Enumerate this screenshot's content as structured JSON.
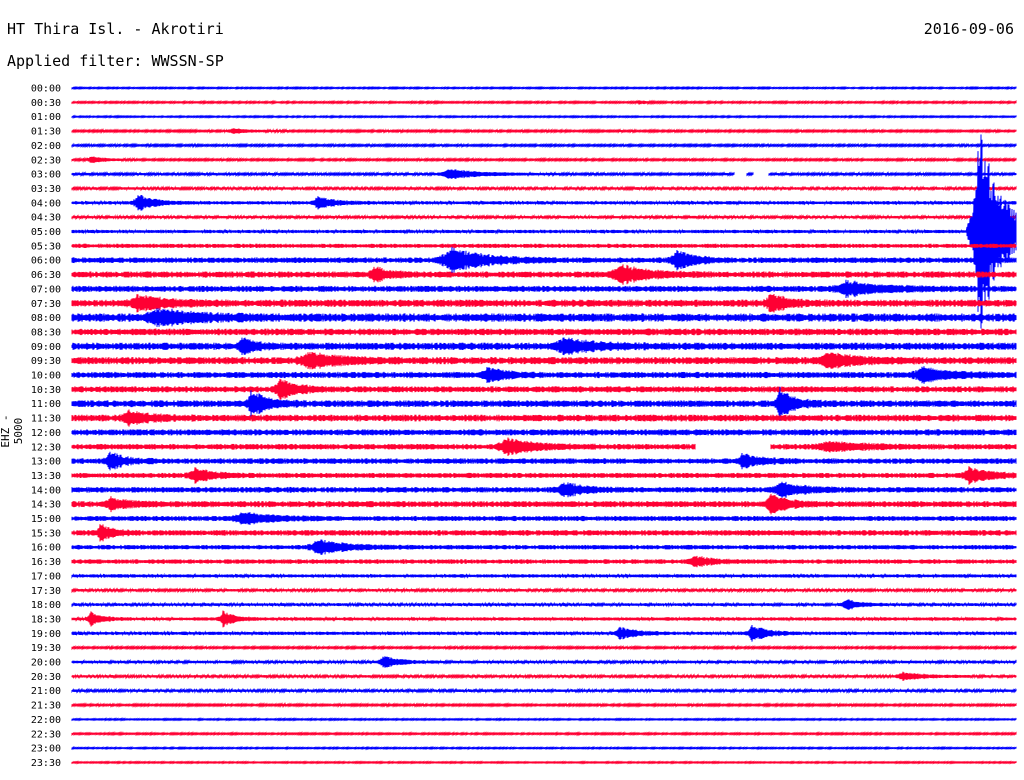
{
  "header": {
    "station": "HT Thira Isl. - Akrotiri",
    "date": "2016-09-06",
    "filter": "Applied filter: WWSSN-SP"
  },
  "axis": {
    "ylabel": "EHZ - 5000"
  },
  "colors": {
    "blue": "#0000ff",
    "red": "#ff0033"
  },
  "chart_data": {
    "type": "line",
    "title": "HT Thira Isl. - Akrotiri",
    "ylabel": "EHZ - 5000",
    "row_labels": [
      "00:00",
      "00:30",
      "01:00",
      "01:30",
      "02:00",
      "02:30",
      "03:00",
      "03:30",
      "04:00",
      "04:30",
      "05:00",
      "05:30",
      "06:00",
      "06:30",
      "07:00",
      "07:30",
      "08:00",
      "08:30",
      "09:00",
      "09:30",
      "10:00",
      "10:30",
      "11:00",
      "11:30",
      "12:00",
      "12:30",
      "13:00",
      "13:30",
      "14:00",
      "14:30",
      "15:00",
      "15:30",
      "16:00",
      "16:30",
      "17:00",
      "17:30",
      "18:00",
      "18:30",
      "19:00",
      "19:30",
      "20:00",
      "20:30",
      "21:00",
      "21:30",
      "22:00",
      "22:30",
      "23:00",
      "23:30"
    ],
    "noise": [
      0.5,
      0.6,
      0.5,
      0.7,
      0.7,
      0.7,
      0.8,
      0.9,
      1.2,
      0.9,
      1.2,
      1.5,
      2.0,
      2.2,
      2.2,
      2.6,
      3.0,
      2.4,
      2.6,
      2.6,
      2.2,
      2.2,
      2.4,
      2.4,
      2.2,
      2.0,
      2.0,
      1.8,
      2.0,
      2.2,
      1.8,
      2.0,
      1.6,
      1.6,
      1.2,
      0.9,
      1.0,
      1.2,
      1.2,
      0.7,
      1.0,
      0.9,
      0.9,
      0.7,
      0.5,
      0.6,
      0.5,
      0.5
    ],
    "events": [
      {
        "row": 1,
        "x": 0.6,
        "amp": 2,
        "width": 0.03
      },
      {
        "row": 3,
        "x": 0.17,
        "amp": 3,
        "width": 0.06
      },
      {
        "row": 5,
        "x": 0.02,
        "amp": 3,
        "width": 0.05
      },
      {
        "row": 6,
        "x": 0.4,
        "amp": 5,
        "width": 0.12
      },
      {
        "row": 8,
        "x": 0.07,
        "amp": 8,
        "width": 0.06
      },
      {
        "row": 8,
        "x": 0.26,
        "amp": 6,
        "width": 0.06
      },
      {
        "row": 10,
        "x": 0.96,
        "amp": 110,
        "width": 0.08
      },
      {
        "row": 12,
        "x": 0.4,
        "amp": 12,
        "width": 0.12
      },
      {
        "row": 12,
        "x": 0.64,
        "amp": 10,
        "width": 0.06
      },
      {
        "row": 13,
        "x": 0.58,
        "amp": 9,
        "width": 0.1
      },
      {
        "row": 13,
        "x": 0.32,
        "amp": 8,
        "width": 0.05
      },
      {
        "row": 14,
        "x": 0.82,
        "amp": 7,
        "width": 0.12
      },
      {
        "row": 15,
        "x": 0.07,
        "amp": 7,
        "width": 0.1
      },
      {
        "row": 15,
        "x": 0.74,
        "amp": 9,
        "width": 0.06
      },
      {
        "row": 16,
        "x": 0.09,
        "amp": 7,
        "width": 0.15
      },
      {
        "row": 18,
        "x": 0.18,
        "amp": 8,
        "width": 0.04
      },
      {
        "row": 18,
        "x": 0.52,
        "amp": 7,
        "width": 0.12
      },
      {
        "row": 19,
        "x": 0.25,
        "amp": 8,
        "width": 0.1
      },
      {
        "row": 19,
        "x": 0.8,
        "amp": 7,
        "width": 0.1
      },
      {
        "row": 20,
        "x": 0.44,
        "amp": 7,
        "width": 0.06
      },
      {
        "row": 20,
        "x": 0.9,
        "amp": 7,
        "width": 0.1
      },
      {
        "row": 21,
        "x": 0.22,
        "amp": 10,
        "width": 0.06
      },
      {
        "row": 22,
        "x": 0.19,
        "amp": 12,
        "width": 0.06
      },
      {
        "row": 22,
        "x": 0.75,
        "amp": 14,
        "width": 0.05
      },
      {
        "row": 23,
        "x": 0.06,
        "amp": 6,
        "width": 0.08
      },
      {
        "row": 25,
        "x": 0.46,
        "amp": 8,
        "width": 0.1
      },
      {
        "row": 25,
        "x": 0.8,
        "amp": 5,
        "width": 0.12
      },
      {
        "row": 26,
        "x": 0.04,
        "amp": 9,
        "width": 0.05
      },
      {
        "row": 26,
        "x": 0.71,
        "amp": 7,
        "width": 0.06
      },
      {
        "row": 27,
        "x": 0.13,
        "amp": 7,
        "width": 0.07
      },
      {
        "row": 27,
        "x": 0.95,
        "amp": 8,
        "width": 0.07
      },
      {
        "row": 28,
        "x": 0.52,
        "amp": 7,
        "width": 0.07
      },
      {
        "row": 28,
        "x": 0.75,
        "amp": 7,
        "width": 0.08
      },
      {
        "row": 29,
        "x": 0.74,
        "amp": 10,
        "width": 0.06
      },
      {
        "row": 29,
        "x": 0.04,
        "amp": 6,
        "width": 0.06
      },
      {
        "row": 30,
        "x": 0.18,
        "amp": 6,
        "width": 0.1
      },
      {
        "row": 31,
        "x": 0.03,
        "amp": 9,
        "width": 0.04
      },
      {
        "row": 32,
        "x": 0.26,
        "amp": 7,
        "width": 0.1
      },
      {
        "row": 33,
        "x": 0.66,
        "amp": 5,
        "width": 0.06
      },
      {
        "row": 36,
        "x": 0.82,
        "amp": 6,
        "width": 0.05
      },
      {
        "row": 37,
        "x": 0.02,
        "amp": 7,
        "width": 0.04
      },
      {
        "row": 37,
        "x": 0.16,
        "amp": 8,
        "width": 0.04
      },
      {
        "row": 38,
        "x": 0.58,
        "amp": 6,
        "width": 0.06
      },
      {
        "row": 38,
        "x": 0.72,
        "amp": 9,
        "width": 0.05
      },
      {
        "row": 40,
        "x": 0.33,
        "amp": 6,
        "width": 0.06
      },
      {
        "row": 41,
        "x": 0.88,
        "amp": 4,
        "width": 0.08
      }
    ],
    "gaps": [
      {
        "row": 6,
        "from": 0.702,
        "to": 0.715
      },
      {
        "row": 6,
        "from": 0.722,
        "to": 0.738
      },
      {
        "row": 25,
        "from": 0.66,
        "to": 0.74
      }
    ]
  }
}
